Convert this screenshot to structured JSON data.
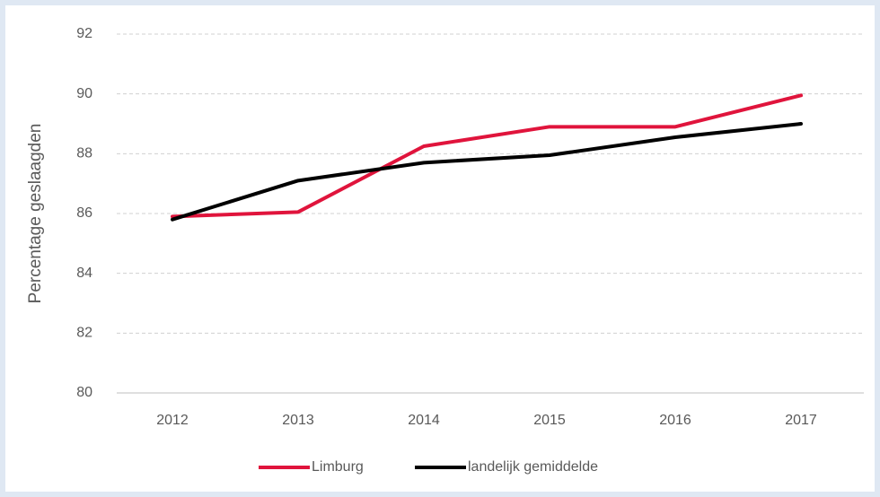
{
  "chart_data": {
    "type": "line",
    "categories": [
      "2012",
      "2013",
      "2014",
      "2015",
      "2016",
      "2017"
    ],
    "y_label": "Percentage geslaagden",
    "series": [
      {
        "name": "Limburg",
        "color": "#e0143c",
        "values": [
          85.9,
          86.05,
          88.25,
          88.9,
          88.9,
          89.95
        ]
      },
      {
        "name": "landelijk gemiddelde",
        "color": "#000000",
        "values": [
          85.8,
          87.1,
          87.7,
          87.95,
          88.55,
          89.0
        ]
      }
    ],
    "ylim": [
      80,
      92
    ],
    "yticks": [
      80,
      82,
      84,
      86,
      88,
      90,
      92
    ],
    "grid": true,
    "legend": "bottom"
  }
}
